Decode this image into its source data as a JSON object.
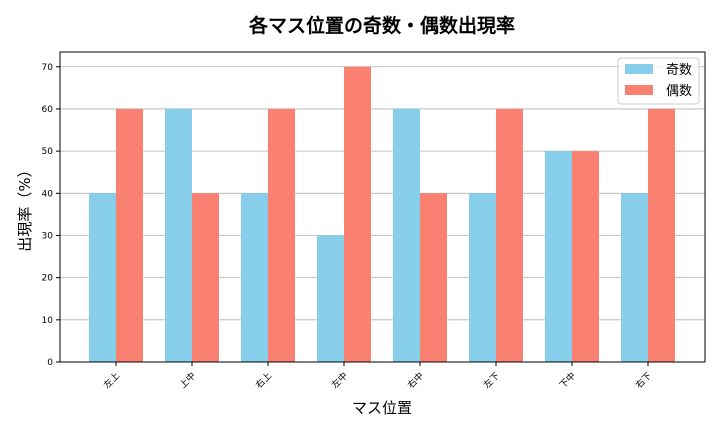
{
  "chart_data": {
    "type": "bar",
    "title": "各マス位置の奇数・偶数出現率",
    "xlabel": "マス位置",
    "ylabel": "出現率（%）",
    "categories": [
      "左上",
      "上中",
      "右上",
      "左中",
      "右中",
      "左下",
      "下中",
      "右下"
    ],
    "series": [
      {
        "name": "奇数",
        "color": "#87CEEB",
        "values": [
          40,
          60,
          40,
          30,
          60,
          40,
          50,
          40
        ]
      },
      {
        "name": "偶数",
        "color": "#FA8072",
        "values": [
          60,
          40,
          60,
          70,
          40,
          60,
          50,
          60
        ]
      }
    ],
    "ylim": [
      0,
      73.5
    ],
    "yticks": [
      0,
      10,
      20,
      30,
      40,
      50,
      60,
      70
    ],
    "grid": "y",
    "legend": "top-right"
  }
}
